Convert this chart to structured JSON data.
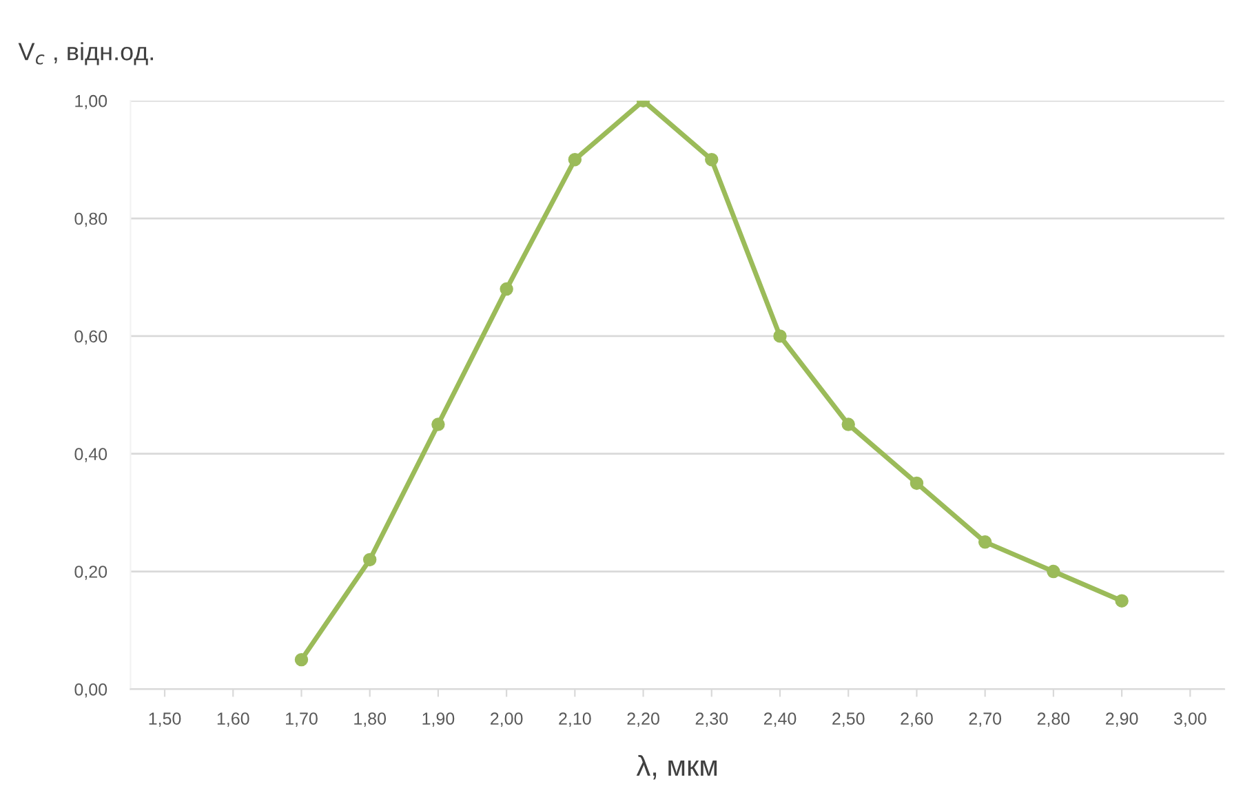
{
  "chart_data": {
    "type": "line",
    "ylabel": "V$_{c}$ , відн.од.",
    "xlabel": "λ, мкм",
    "x": [
      1.7,
      1.8,
      1.9,
      2.0,
      2.1,
      2.2,
      2.3,
      2.4,
      2.5,
      2.6,
      2.7,
      2.8,
      2.9
    ],
    "series": [
      {
        "color": "#9bbb59",
        "values": [
          0.05,
          0.22,
          0.45,
          0.68,
          0.9,
          1.0,
          0.9,
          0.6,
          0.45,
          0.35,
          0.25,
          0.2,
          0.15
        ]
      }
    ],
    "xlim": [
      1.45,
      3.05
    ],
    "xticks": [
      {
        "value": 1.5,
        "label": "1,50"
      },
      {
        "value": 1.6,
        "label": "1,60"
      },
      {
        "value": 1.7,
        "label": "1,70"
      },
      {
        "value": 1.8,
        "label": "1,80"
      },
      {
        "value": 1.9,
        "label": "1,90"
      },
      {
        "value": 2.0,
        "label": "2,00"
      },
      {
        "value": 2.1,
        "label": "2,10"
      },
      {
        "value": 2.2,
        "label": "2,20"
      },
      {
        "value": 2.3,
        "label": "2,30"
      },
      {
        "value": 2.4,
        "label": "2,40"
      },
      {
        "value": 2.5,
        "label": "2,50"
      },
      {
        "value": 2.6,
        "label": "2,60"
      },
      {
        "value": 2.7,
        "label": "2,70"
      },
      {
        "value": 2.8,
        "label": "2,80"
      },
      {
        "value": 2.9,
        "label": "2,90"
      },
      {
        "value": 3.0,
        "label": "3,00"
      }
    ],
    "ylim": [
      0,
      1.0
    ],
    "yticks": [
      {
        "value": 0,
        "label": "0,00"
      },
      {
        "value": 0.2,
        "label": "0,20"
      },
      {
        "value": 0.4,
        "label": "0,40"
      },
      {
        "value": 0.6,
        "label": "0,60"
      },
      {
        "value": 0.8,
        "label": "0,80"
      },
      {
        "value": 1.0,
        "label": "1,00"
      }
    ],
    "grid": "y",
    "marker": "circle",
    "line_style": "solid",
    "legend": false
  }
}
